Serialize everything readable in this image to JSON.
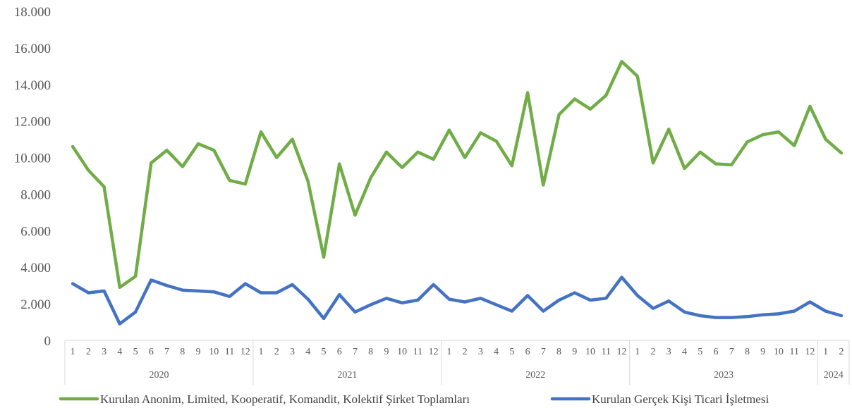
{
  "chart_data": {
    "type": "line",
    "title": "",
    "xlabel": "",
    "ylabel": "",
    "ylim": [
      0,
      18000
    ],
    "yticks": [
      0,
      2000,
      4000,
      6000,
      8000,
      10000,
      12000,
      14000,
      16000,
      18000
    ],
    "ytick_labels": [
      "0",
      "2.000",
      "4.000",
      "6.000",
      "8.000",
      "10.000",
      "12.000",
      "14.000",
      "16.000",
      "18.000"
    ],
    "grid": false,
    "legend_position": "bottom",
    "years": [
      {
        "label": "2020",
        "months": 12
      },
      {
        "label": "2021",
        "months": 12
      },
      {
        "label": "2022",
        "months": 12
      },
      {
        "label": "2023",
        "months": 12
      },
      {
        "label": "2024",
        "months": 2
      }
    ],
    "categories": [
      "1",
      "2",
      "3",
      "4",
      "5",
      "6",
      "7",
      "8",
      "9",
      "10",
      "11",
      "12",
      "1",
      "2",
      "3",
      "4",
      "5",
      "6",
      "7",
      "8",
      "9",
      "10",
      "11",
      "12",
      "1",
      "2",
      "3",
      "4",
      "5",
      "6",
      "7",
      "8",
      "9",
      "10",
      "11",
      "12",
      "1",
      "2",
      "3",
      "4",
      "5",
      "6",
      "7",
      "8",
      "9",
      "10",
      "11",
      "12",
      "1",
      "2"
    ],
    "series": [
      {
        "name": "Kurulan Anonim, Limited, Kooperatif, Komandit, Kolektif Şirket Toplamları",
        "color": "#70AD47",
        "values": [
          10600,
          9300,
          8400,
          2900,
          3500,
          9700,
          10400,
          9500,
          10750,
          10400,
          8750,
          8550,
          11400,
          10000,
          11000,
          8700,
          4550,
          9650,
          6850,
          8900,
          10300,
          9450,
          10300,
          9900,
          11500,
          10000,
          11350,
          10900,
          9550,
          13550,
          8500,
          12350,
          13200,
          12650,
          13400,
          15250,
          14450,
          9700,
          11550,
          9400,
          10300,
          9650,
          9600,
          10850,
          11250,
          11400,
          10650,
          12800,
          11000,
          10250
        ]
      },
      {
        "name": "Kurulan Gerçek Kişi Ticari İşletmesi",
        "color": "#4472C4",
        "values": [
          3100,
          2600,
          2700,
          900,
          1550,
          3300,
          3000,
          2750,
          2700,
          2650,
          2400,
          3100,
          2600,
          2600,
          3050,
          2250,
          1200,
          2500,
          1550,
          1950,
          2300,
          2050,
          2200,
          3050,
          2250,
          2100,
          2300,
          1950,
          1600,
          2450,
          1600,
          2200,
          2600,
          2200,
          2300,
          3450,
          2450,
          1750,
          2150,
          1550,
          1350,
          1250,
          1250,
          1300,
          1400,
          1450,
          1600,
          2100,
          1600,
          1350
        ]
      }
    ]
  }
}
